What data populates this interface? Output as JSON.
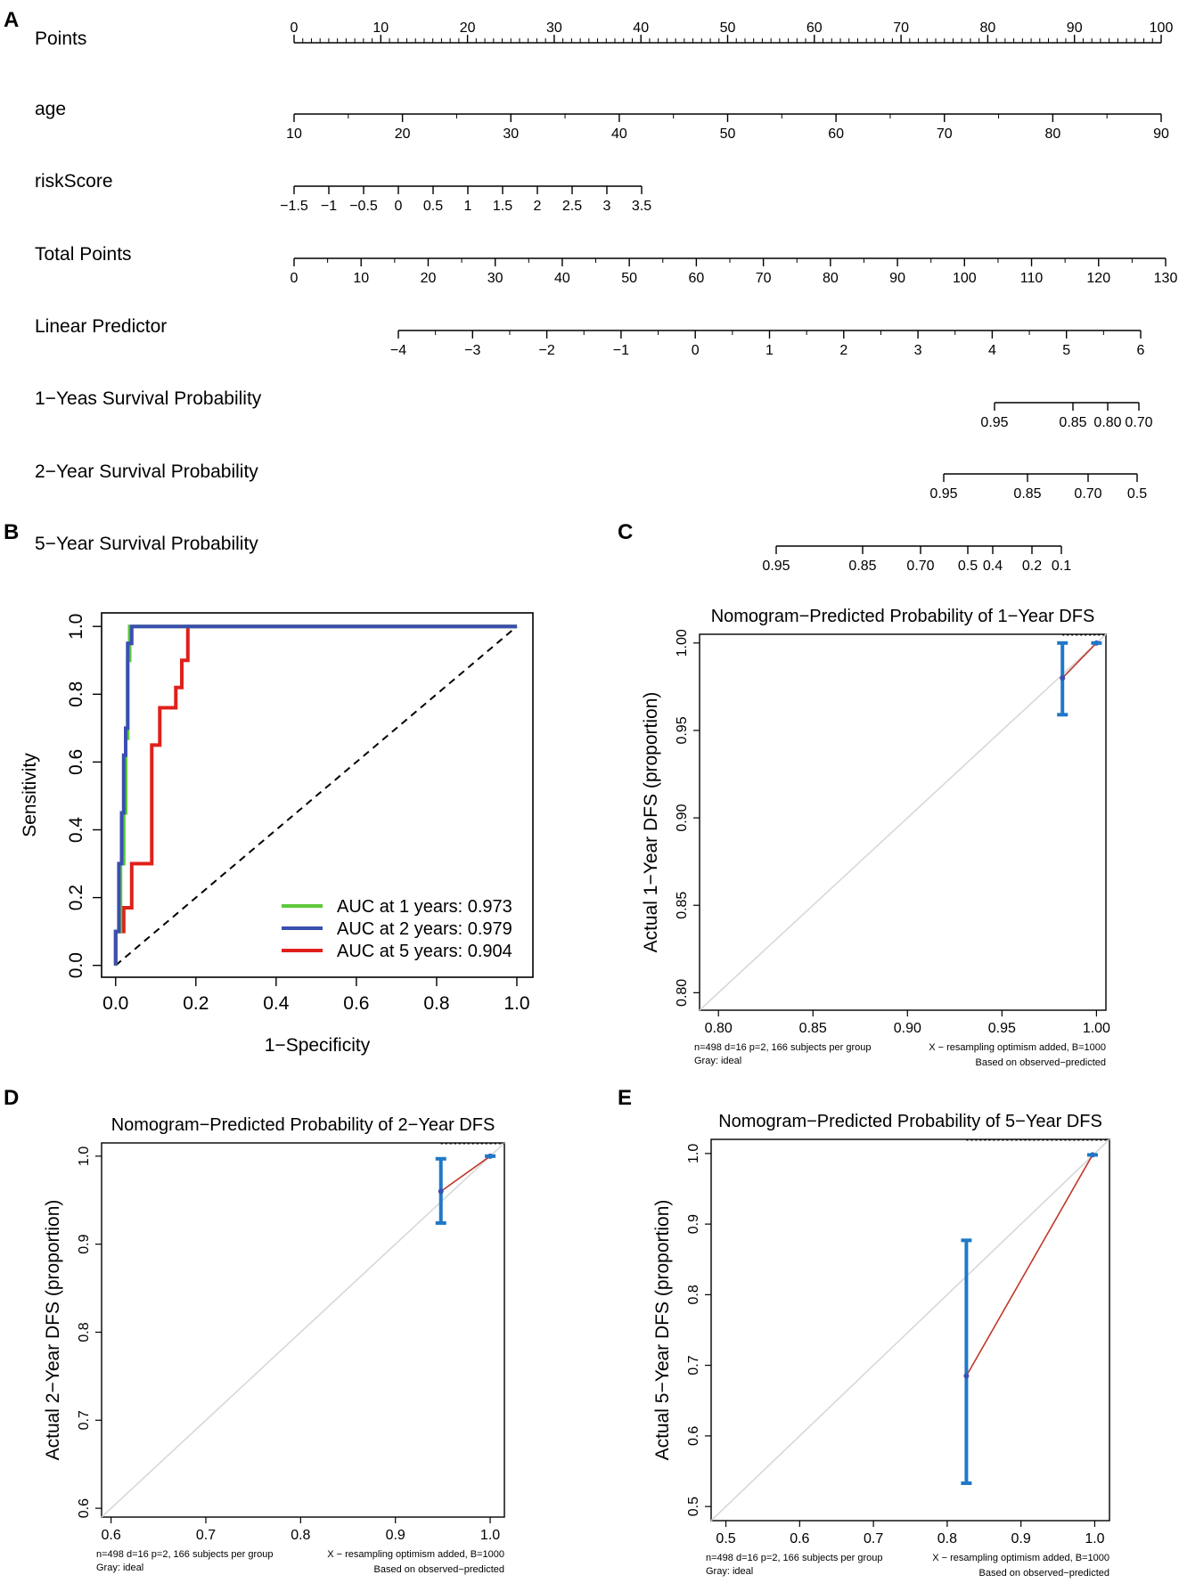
{
  "panel_labels": [
    "A",
    "B",
    "C",
    "D",
    "E"
  ],
  "colors": {
    "axis": "#000000",
    "green": "#5cc83a",
    "blue": "#3a4fb0",
    "red": "#e0201b",
    "calib_bar": "#1f78c8",
    "calib_line": "#c0392b",
    "ideal": "#d8d8d8",
    "point": "#3a4fb0"
  },
  "chart_data": [
    {
      "id": "A",
      "type": "nomogram",
      "rows": [
        {
          "label": "Points",
          "range": [
            0,
            100
          ],
          "ticks": [
            0,
            10,
            20,
            30,
            40,
            50,
            60,
            70,
            80,
            90,
            100
          ],
          "labels_above": true
        },
        {
          "label": "age",
          "range": [
            10,
            90
          ],
          "ticks": [
            10,
            20,
            30,
            40,
            50,
            60,
            70,
            80,
            90
          ]
        },
        {
          "label": "riskScore",
          "range": [
            -1.5,
            3.5
          ],
          "ticks": [
            -1.5,
            -1,
            -0.5,
            0,
            0.5,
            1,
            1.5,
            2,
            2.5,
            3,
            3.5
          ]
        },
        {
          "label": "Total Points",
          "range": [
            0,
            130
          ],
          "ticks": [
            0,
            10,
            20,
            30,
            40,
            50,
            60,
            70,
            80,
            90,
            100,
            110,
            120,
            130
          ]
        },
        {
          "label": "Linear Predictor",
          "range": [
            -4,
            6
          ],
          "ticks": [
            -4,
            -3,
            -2,
            -1,
            0,
            1,
            2,
            3,
            4,
            5,
            6
          ]
        },
        {
          "label": "1−Yeas Survival Probability",
          "ticks": [
            0.95,
            0.85,
            0.8,
            0.7
          ]
        },
        {
          "label": "2−Year Survival Probability",
          "ticks": [
            0.95,
            0.85,
            0.7,
            0.5
          ]
        },
        {
          "label": "5−Year Survival Probability",
          "ticks": [
            0.95,
            0.85,
            0.7,
            0.5,
            0.4,
            0.2,
            0.1
          ]
        }
      ],
      "tick_texts": {
        "riskScore": [
          "−1.5",
          "−1",
          "−0.5",
          "0",
          "0.5",
          "1",
          "1.5",
          "2",
          "2.5",
          "3",
          "3.5"
        ],
        "Linear Predictor": [
          "−4",
          "−3",
          "−2",
          "−1",
          "0",
          "1",
          "2",
          "3",
          "4",
          "5",
          "6"
        ],
        "1−Yeas Survival Probability": [
          "0.95",
          "0.85",
          "0.80",
          "0.70"
        ],
        "2−Year Survival Probability": [
          "0.95",
          "0.85",
          "0.70",
          "0.5"
        ],
        "5−Year Survival Probability": [
          "0.95",
          "0.85",
          "0.70",
          "0.5",
          "0.4",
          "0.2",
          "0.1"
        ]
      }
    },
    {
      "id": "B",
      "type": "line",
      "title": "",
      "xlabel": "1−Specificity",
      "ylabel": "Sensitivity",
      "xlim": [
        0,
        1
      ],
      "ylim": [
        0,
        1
      ],
      "ticks": [
        0.0,
        0.2,
        0.4,
        0.6,
        0.8,
        1.0
      ],
      "tick_labels": [
        "0.0",
        "0.2",
        "0.4",
        "0.6",
        "0.8",
        "1.0"
      ],
      "legend_position": "bottom-right",
      "series": [
        {
          "name": "AUC at 1 years: 0.973",
          "color": "#5cc83a",
          "x": [
            0,
            0,
            0.012,
            0.012,
            0.02,
            0.02,
            0.025,
            0.025,
            0.03,
            0.03,
            0.035,
            0.035,
            1
          ],
          "y": [
            0,
            0.1,
            0.1,
            0.3,
            0.3,
            0.45,
            0.45,
            0.67,
            0.67,
            0.9,
            0.9,
            1,
            1
          ]
        },
        {
          "name": "AUC at 2 years: 0.979",
          "color": "#3a4fb0",
          "x": [
            0,
            0,
            0.008,
            0.008,
            0.015,
            0.015,
            0.02,
            0.02,
            0.025,
            0.025,
            0.03,
            0.03,
            0.04,
            0.04,
            1
          ],
          "y": [
            0,
            0.1,
            0.1,
            0.3,
            0.3,
            0.45,
            0.45,
            0.62,
            0.62,
            0.7,
            0.7,
            0.95,
            0.95,
            1,
            1
          ]
        },
        {
          "name": "AUC at 5 years: 0.904",
          "color": "#e0201b",
          "x": [
            0,
            0,
            0.02,
            0.02,
            0.04,
            0.04,
            0.05,
            0.05,
            0.09,
            0.09,
            0.11,
            0.11,
            0.15,
            0.15,
            0.165,
            0.165,
            0.18,
            0.18,
            1
          ],
          "y": [
            0,
            0.1,
            0.1,
            0.17,
            0.17,
            0.3,
            0.3,
            0.3,
            0.3,
            0.65,
            0.65,
            0.76,
            0.76,
            0.82,
            0.82,
            0.9,
            0.9,
            1,
            1
          ]
        }
      ],
      "reference_line": {
        "x": [
          0,
          1
        ],
        "y": [
          0,
          1
        ],
        "style": "dashed"
      }
    },
    {
      "id": "C",
      "type": "calibration",
      "title": "Nomogram−Predicted Probability of 1−Year DFS",
      "xlabel": "",
      "ylabel": "Actual 1−Year DFS (proportion)",
      "xlim": [
        0.79,
        1.005
      ],
      "ylim": [
        0.79,
        1.005
      ],
      "xticks": [
        0.8,
        0.85,
        0.9,
        0.95,
        1.0
      ],
      "xtick_labels": [
        "0.80",
        "0.85",
        "0.90",
        "0.95",
        "1.00"
      ],
      "yticks": [
        0.8,
        0.85,
        0.9,
        0.95,
        1.0
      ],
      "ytick_labels": [
        "0.80",
        "0.85",
        "0.90",
        "0.95",
        "1.00"
      ],
      "points": [
        {
          "x": 0.982,
          "y": 0.98,
          "lo": 0.959,
          "hi": 1.0
        },
        {
          "x": 1.0,
          "y": 1.0
        }
      ],
      "notes": {
        "left1": "n=498 d=16 p=2, 166 subjects per group",
        "left2": "Gray: ideal",
        "right1": "X − resampling optimism added, B=1000",
        "right2": "Based on observed−predicted"
      }
    },
    {
      "id": "D",
      "type": "calibration",
      "title": "Nomogram−Predicted Probability of 2−Year DFS",
      "xlabel": "",
      "ylabel": "Actual 2−Year DFS (proportion)",
      "xlim": [
        0.59,
        1.015
      ],
      "ylim": [
        0.59,
        1.015
      ],
      "xticks": [
        0.6,
        0.7,
        0.8,
        0.9,
        1.0
      ],
      "xtick_labels": [
        "0.6",
        "0.7",
        "0.8",
        "0.9",
        "1.0"
      ],
      "yticks": [
        0.6,
        0.7,
        0.8,
        0.9,
        1.0
      ],
      "ytick_labels": [
        "0.6",
        "0.7",
        "0.8",
        "0.9",
        "1.0"
      ],
      "points": [
        {
          "x": 0.948,
          "y": 0.96,
          "lo": 0.924,
          "hi": 0.997
        },
        {
          "x": 1.0,
          "y": 1.0
        }
      ],
      "notes": {
        "left1": "n=498 d=16 p=2, 166 subjects per group",
        "left2": "Gray: ideal",
        "right1": "X − resampling optimism added, B=1000",
        "right2": "Based on observed−predicted"
      }
    },
    {
      "id": "E",
      "type": "calibration",
      "title": "Nomogram−Predicted Probability of 5−Year DFS",
      "xlabel": "",
      "ylabel": "Actual 5−Year DFS (proportion)",
      "xlim": [
        0.48,
        1.02
      ],
      "ylim": [
        0.48,
        1.02
      ],
      "xticks": [
        0.5,
        0.6,
        0.7,
        0.8,
        0.9,
        1.0
      ],
      "xtick_labels": [
        "0.5",
        "0.6",
        "0.7",
        "0.8",
        "0.9",
        "1.0"
      ],
      "yticks": [
        0.5,
        0.6,
        0.7,
        0.8,
        0.9,
        1.0
      ],
      "ytick_labels": [
        "0.5",
        "0.6",
        "0.7",
        "0.8",
        "0.9",
        "1.0"
      ],
      "points": [
        {
          "x": 0.826,
          "y": 0.685,
          "lo": 0.533,
          "hi": 0.877
        },
        {
          "x": 0.997,
          "y": 0.998
        }
      ],
      "notes": {
        "left1": "n=498 d=16 p=2, 166 subjects per group",
        "left2": "Gray: ideal",
        "right1": "X − resampling optimism added, B=1000",
        "right2": "Based on observed−predicted"
      }
    }
  ]
}
